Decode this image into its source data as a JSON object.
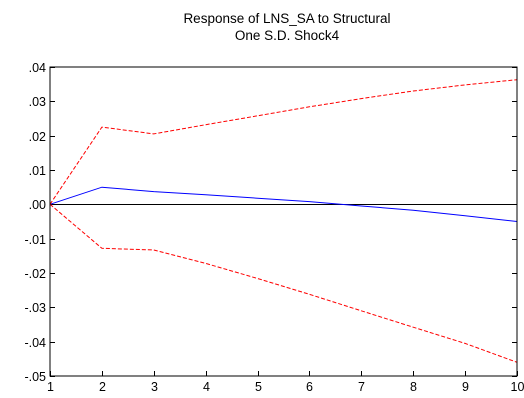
{
  "chart_data": {
    "type": "line",
    "title_lines": [
      "Response of LNS_SA to Structural",
      "One S.D. Shock4"
    ],
    "xlabel": "",
    "ylabel": "",
    "x": [
      1,
      2,
      3,
      4,
      5,
      6,
      7,
      8,
      9,
      10
    ],
    "xlim": [
      1,
      10
    ],
    "ylim": [
      -0.05,
      0.04
    ],
    "x_tick_labels": [
      "1",
      "2",
      "3",
      "4",
      "5",
      "6",
      "7",
      "8",
      "9",
      "10"
    ],
    "y_ticks": [
      0.04,
      0.03,
      0.02,
      0.01,
      0.0,
      -0.01,
      -0.02,
      -0.03,
      -0.04,
      -0.05
    ],
    "y_tick_labels": [
      ".04",
      ".03",
      ".02",
      ".01",
      ".00",
      "-.01",
      "-.02",
      "-.03",
      "-.04",
      "-.05"
    ],
    "zero_line": true,
    "grid": false,
    "legend": "none",
    "series": [
      {
        "role": "response",
        "color": "#0000ff",
        "dash": false,
        "values": [
          0.0,
          0.005,
          0.0037,
          0.0028,
          0.0018,
          0.0008,
          -0.0005,
          -0.0017,
          -0.0033,
          -0.005
        ]
      },
      {
        "role": "upper_band",
        "color": "#ff0000",
        "dash": true,
        "values": [
          0.0,
          0.0225,
          0.0205,
          0.0232,
          0.0258,
          0.0284,
          0.0308,
          0.033,
          0.0348,
          0.0363
        ]
      },
      {
        "role": "lower_band",
        "color": "#ff0000",
        "dash": true,
        "values": [
          0.0,
          -0.0128,
          -0.0133,
          -0.0172,
          -0.0216,
          -0.0262,
          -0.031,
          -0.0358,
          -0.0405,
          -0.046
        ]
      }
    ]
  }
}
